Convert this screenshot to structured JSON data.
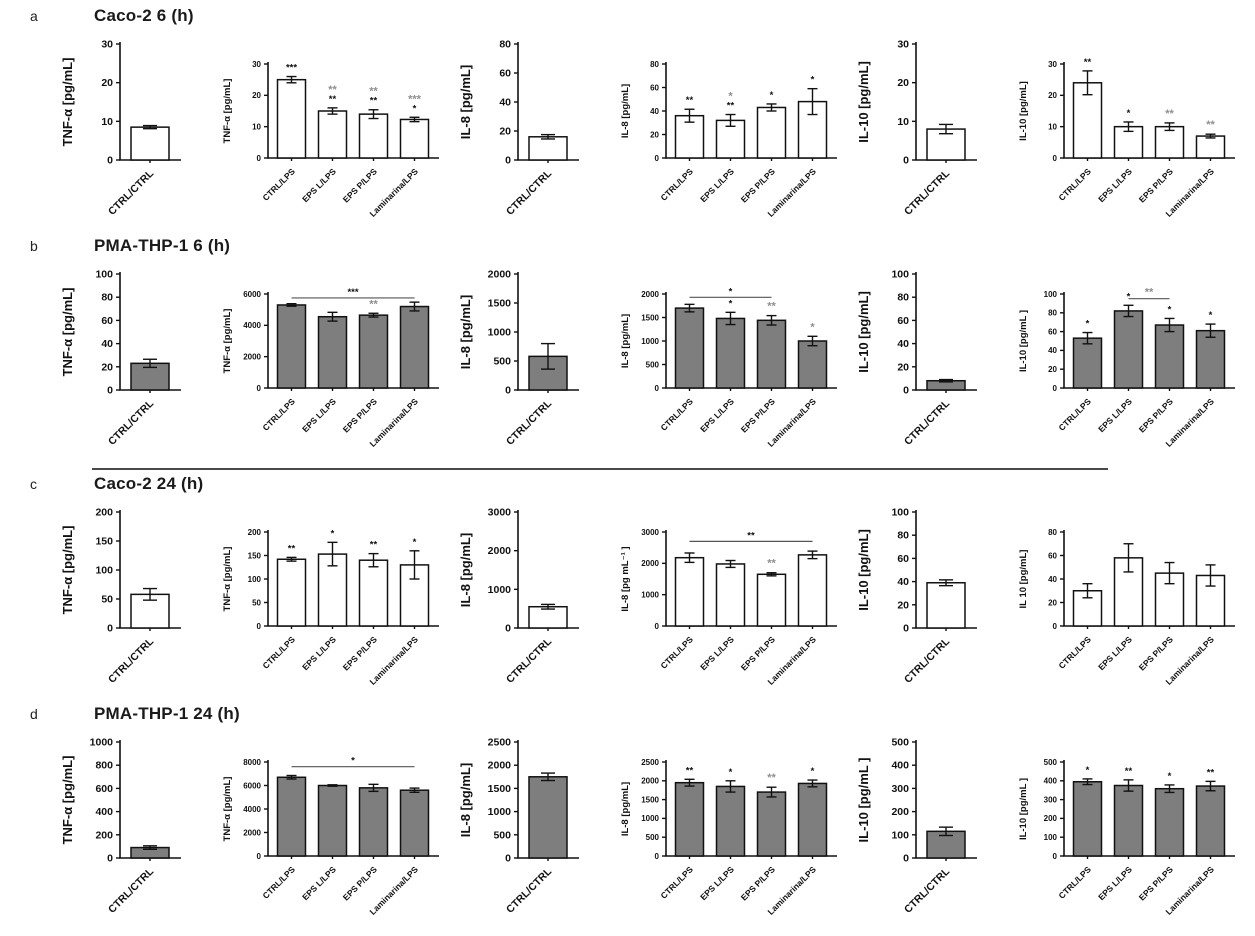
{
  "colors": {
    "white_bar": "#FFFFFF",
    "gray_bar": "#7E7E7E",
    "axis": "#111111",
    "significance_gray": "#8F8F8F",
    "divider": "#4A4A4A"
  },
  "chart_data": [
    {
      "label": "a",
      "title": "Caco-2 6 (h)",
      "type": "bar",
      "bar_fill": "#FFFFFF",
      "charts": [
        {
          "name": "tnf-ctrl",
          "ylabel": "TNF-α [pg/mL]",
          "ylim": [
            0,
            30
          ],
          "yticks": [
            0,
            10,
            20,
            30
          ],
          "categories": [
            "CTRL/CTRL"
          ],
          "values": [
            8.5
          ],
          "errors": [
            0.4
          ],
          "stars": [
            []
          ]
        },
        {
          "name": "tnf-lps",
          "ylabel": "TNF-α [pg/mL]",
          "ylim": [
            0,
            30
          ],
          "yticks": [
            0,
            10,
            20,
            30
          ],
          "categories": [
            "CTRL/LPS",
            "EPS L/LPS",
            "EPS P/LPS",
            "Laminarina/LPS"
          ],
          "values": [
            25,
            15,
            14,
            12.3
          ],
          "errors": [
            1,
            1,
            1.4,
            0.7
          ],
          "stars": [
            [
              "***"
            ],
            [
              "~**",
              "**"
            ],
            [
              "~**",
              "**"
            ],
            [
              "~***",
              "*"
            ]
          ]
        },
        {
          "name": "il8-ctrl",
          "ylabel": "IL-8 [pg/mL]",
          "ylim": [
            0,
            80
          ],
          "yticks": [
            0,
            20,
            40,
            60,
            80
          ],
          "categories": [
            "CTRL/CTRL"
          ],
          "values": [
            16
          ],
          "errors": [
            1.5
          ],
          "stars": [
            []
          ]
        },
        {
          "name": "il8-lps",
          "ylabel": "IL-8 [pg/mL]",
          "ylim": [
            0,
            80
          ],
          "yticks": [
            0,
            20,
            40,
            60,
            80
          ],
          "categories": [
            "CTRL/LPS",
            "EPS L/LPS",
            "EPS P/LPS",
            "Laminarina/LPS"
          ],
          "values": [
            36,
            32,
            43,
            48
          ],
          "errors": [
            5.5,
            5,
            3,
            11
          ],
          "stars": [
            [
              "**"
            ],
            [
              "~*",
              "**"
            ],
            [
              "*"
            ],
            [
              "*"
            ]
          ]
        },
        {
          "name": "il10-ctrl",
          "ylabel": "IL-10 [pg/mL]",
          "ylim": [
            0,
            30
          ],
          "yticks": [
            0,
            10,
            20,
            30
          ],
          "categories": [
            "CTRL/CTRL"
          ],
          "values": [
            8
          ],
          "errors": [
            1.2
          ],
          "stars": [
            []
          ]
        },
        {
          "name": "il10-lps",
          "ylabel": "IL-10 [pg/mL]",
          "ylim": [
            0,
            30
          ],
          "yticks": [
            0,
            10,
            20,
            30
          ],
          "categories": [
            "CTRL/LPS",
            "EPS L/LPS",
            "EPS P/LPS",
            "Laminarina/LPS"
          ],
          "values": [
            24,
            10,
            10,
            7
          ],
          "errors": [
            3.8,
            1.5,
            1.2,
            0.6
          ],
          "stars": [
            [
              "**"
            ],
            [
              "*"
            ],
            [
              "~**"
            ],
            [
              "~**"
            ]
          ]
        }
      ]
    },
    {
      "label": "b",
      "title": "PMA-THP-1 6 (h)",
      "type": "bar",
      "bar_fill": "#7E7E7E",
      "charts": [
        {
          "name": "tnf-ctrl",
          "ylabel": "TNF-α [pg/mL]",
          "ylim": [
            0,
            100
          ],
          "yticks": [
            0,
            20,
            40,
            60,
            80,
            100
          ],
          "categories": [
            "CTRL/CTRL"
          ],
          "values": [
            23
          ],
          "errors": [
            3.5
          ],
          "stars": [
            []
          ]
        },
        {
          "name": "tnf-lps",
          "ylabel": "TNF-α [pg/mL]",
          "ylim": [
            0,
            6000
          ],
          "yticks": [
            0,
            2000,
            4000,
            6000
          ],
          "categories": [
            "CTRL/LPS",
            "EPS L/LPS",
            "EPS P/LPS",
            "Laminarina/LPS"
          ],
          "values": [
            5300,
            4550,
            4650,
            5200
          ],
          "errors": [
            80,
            280,
            120,
            280
          ],
          "stars": [
            [],
            [],
            [
              "~**"
            ],
            []
          ],
          "span": {
            "from": 0,
            "to": 3,
            "y": 5750,
            "label": "***"
          }
        },
        {
          "name": "il8-ctrl",
          "ylabel": "IL-8 [pg/mL]",
          "ylim": [
            0,
            2000
          ],
          "yticks": [
            0,
            500,
            1000,
            1500,
            2000
          ],
          "categories": [
            "CTRL/CTRL"
          ],
          "values": [
            580
          ],
          "errors": [
            220
          ],
          "stars": [
            []
          ]
        },
        {
          "name": "il8-lps",
          "ylabel": "IL-8 [pg/mL]",
          "ylim": [
            0,
            2000
          ],
          "yticks": [
            0,
            500,
            1000,
            1500,
            2000
          ],
          "categories": [
            "CTRL/LPS",
            "EPS L/LPS",
            "EPS P/LPS",
            "Laminarina/LPS"
          ],
          "values": [
            1700,
            1480,
            1440,
            1000
          ],
          "errors": [
            80,
            130,
            100,
            100
          ],
          "stars": [
            [],
            [
              "*"
            ],
            [
              "~**"
            ],
            [
              "~*"
            ]
          ],
          "span": {
            "from": 0,
            "to": 2,
            "y": 1930,
            "label": "*"
          }
        },
        {
          "name": "il10-ctrl",
          "ylabel": "IL-10 [pg/mL]",
          "ylim": [
            0,
            100
          ],
          "yticks": [
            0,
            20,
            40,
            60,
            80,
            100
          ],
          "categories": [
            "CTRL/CTRL"
          ],
          "values": [
            8
          ],
          "errors": [
            1
          ],
          "stars": [
            []
          ]
        },
        {
          "name": "il10-lps",
          "ylabel": "IL-10 [pg/mL ]",
          "ylim": [
            0,
            100
          ],
          "yticks": [
            0,
            20,
            40,
            60,
            80,
            100
          ],
          "categories": [
            "CTRL/LPS",
            "EPS L/LPS",
            "EPS P/LPS",
            "Laminarina/LPS"
          ],
          "values": [
            53,
            82,
            67,
            61
          ],
          "errors": [
            6,
            6,
            7,
            7
          ],
          "stars": [
            [
              "*"
            ],
            [
              "*"
            ],
            [
              "*"
            ],
            [
              "*"
            ]
          ],
          "span": {
            "from": 1,
            "to": 2,
            "y": 95,
            "label": "~**"
          }
        }
      ]
    },
    {
      "label": "c",
      "title": "Caco-2 24 (h)",
      "type": "bar",
      "bar_fill": "#FFFFFF",
      "charts": [
        {
          "name": "tnf-ctrl",
          "ylabel": "TNF-α [pg/mL]",
          "ylim": [
            0,
            200
          ],
          "yticks": [
            0,
            50,
            100,
            150,
            200
          ],
          "categories": [
            "CTRL/CTRL"
          ],
          "values": [
            58
          ],
          "errors": [
            10
          ],
          "stars": [
            []
          ]
        },
        {
          "name": "tnf-lps",
          "ylabel": "TNF-α [pg/mL]",
          "ylim": [
            0,
            200
          ],
          "yticks": [
            0,
            50,
            100,
            150,
            200
          ],
          "categories": [
            "CTRL/LPS",
            "EPS L/LPS",
            "EPS P/LPS",
            "Laminarina/LPS"
          ],
          "values": [
            142,
            153,
            140,
            130
          ],
          "errors": [
            4,
            25,
            14,
            30
          ],
          "stars": [
            [
              "**"
            ],
            [
              "*"
            ],
            [
              "**"
            ],
            [
              "*"
            ]
          ]
        },
        {
          "name": "il8-ctrl",
          "ylabel": "IL-8 [pg/mL]",
          "ylim": [
            0,
            3000
          ],
          "yticks": [
            0,
            1000,
            2000,
            3000
          ],
          "categories": [
            "CTRL/CTRL"
          ],
          "values": [
            550
          ],
          "errors": [
            60
          ],
          "stars": [
            []
          ]
        },
        {
          "name": "il8-lps",
          "ylabel": "IL-8 [pg mL⁻¹ ]",
          "ylim": [
            0,
            3000
          ],
          "yticks": [
            0,
            1000,
            2000,
            3000
          ],
          "categories": [
            "CTRL/LPS",
            "EPS L/LPS",
            "EPS P/LPS",
            "Laminarina/LPS"
          ],
          "values": [
            2180,
            1980,
            1650,
            2270
          ],
          "errors": [
            150,
            110,
            50,
            120
          ],
          "stars": [
            [],
            [],
            [
              "~**"
            ],
            []
          ],
          "span": {
            "from": 0,
            "to": 3,
            "y": 2700,
            "label": "**"
          }
        },
        {
          "name": "il10-ctrl",
          "ylabel": "IL-10 [pg/mL]",
          "ylim": [
            0,
            100
          ],
          "yticks": [
            0,
            20,
            40,
            60,
            80,
            100
          ],
          "categories": [
            "CTRL/CTRL"
          ],
          "values": [
            39
          ],
          "errors": [
            2.5
          ],
          "stars": [
            []
          ]
        },
        {
          "name": "il10-lps",
          "ylabel": "IL 10 [pg/mL]",
          "ylim": [
            0,
            80
          ],
          "yticks": [
            0,
            20,
            40,
            60,
            80
          ],
          "categories": [
            "CTRL/LPS",
            "EPS L/LPS",
            "EPS P/LPS",
            "Laminarina/LPS"
          ],
          "values": [
            30,
            58,
            45,
            43
          ],
          "errors": [
            6,
            12,
            9,
            9
          ],
          "stars": [
            [],
            [],
            [],
            []
          ]
        }
      ]
    },
    {
      "label": "d",
      "title": "PMA-THP-1 24 (h)",
      "type": "bar",
      "bar_fill": "#7E7E7E",
      "charts": [
        {
          "name": "tnf-ctrl",
          "ylabel": "TNF-α [pg/mL]",
          "ylim": [
            0,
            1000
          ],
          "yticks": [
            0,
            200,
            400,
            600,
            800,
            1000
          ],
          "categories": [
            "CTRL/CTRL"
          ],
          "values": [
            90
          ],
          "errors": [
            15
          ],
          "stars": [
            []
          ]
        },
        {
          "name": "tnf-lps",
          "ylabel": "TNF-α [pg/mL]",
          "ylim": [
            0,
            8000
          ],
          "yticks": [
            0,
            2000,
            4000,
            6000,
            8000
          ],
          "categories": [
            "CTRL/LPS",
            "EPS L/LPS",
            "EPS P/LPS",
            "Laminarina/LPS"
          ],
          "values": [
            6700,
            6000,
            5800,
            5600
          ],
          "errors": [
            150,
            60,
            300,
            180
          ],
          "stars": [
            [],
            [],
            [],
            []
          ],
          "span": {
            "from": 0,
            "to": 3,
            "y": 7600,
            "label": "*"
          }
        },
        {
          "name": "il8-ctrl",
          "ylabel": "IL-8 [pg/mL]",
          "ylim": [
            0,
            2500
          ],
          "yticks": [
            0,
            500,
            1000,
            1500,
            2000,
            2500
          ],
          "categories": [
            "CTRL/CTRL"
          ],
          "values": [
            1750
          ],
          "errors": [
            80
          ],
          "stars": [
            []
          ]
        },
        {
          "name": "il8-lps",
          "ylabel": "IL-8 [pg/mL]",
          "ylim": [
            0,
            2500
          ],
          "yticks": [
            0,
            500,
            1000,
            1500,
            2000,
            2500
          ],
          "categories": [
            "CTRL/LPS",
            "EPS L/LPS",
            "EPS P/LPS",
            "Laminarina/LPS"
          ],
          "values": [
            1950,
            1850,
            1700,
            1930
          ],
          "errors": [
            90,
            150,
            130,
            90
          ],
          "stars": [
            [
              "**"
            ],
            [
              "*"
            ],
            [
              "~**"
            ],
            [
              "*"
            ]
          ]
        },
        {
          "name": "il10-ctrl",
          "ylabel": "IL-10 [pg/mL ]",
          "ylim": [
            0,
            500
          ],
          "yticks": [
            0,
            100,
            200,
            300,
            400,
            500
          ],
          "categories": [
            "CTRL/CTRL"
          ],
          "values": [
            115
          ],
          "errors": [
            18
          ],
          "stars": [
            []
          ]
        },
        {
          "name": "il10-lps",
          "ylabel": "IL-10 [pg/mL ]",
          "ylim": [
            0,
            500
          ],
          "yticks": [
            0,
            100,
            200,
            300,
            400,
            500
          ],
          "categories": [
            "CTRL/LPS",
            "EPS L/LPS",
            "EPS P/LPS",
            "Laminarina/LPS"
          ],
          "values": [
            395,
            375,
            358,
            372
          ],
          "errors": [
            15,
            30,
            20,
            25
          ],
          "stars": [
            [
              "*"
            ],
            [
              "**"
            ],
            [
              "*"
            ],
            [
              "**"
            ]
          ]
        }
      ]
    }
  ]
}
